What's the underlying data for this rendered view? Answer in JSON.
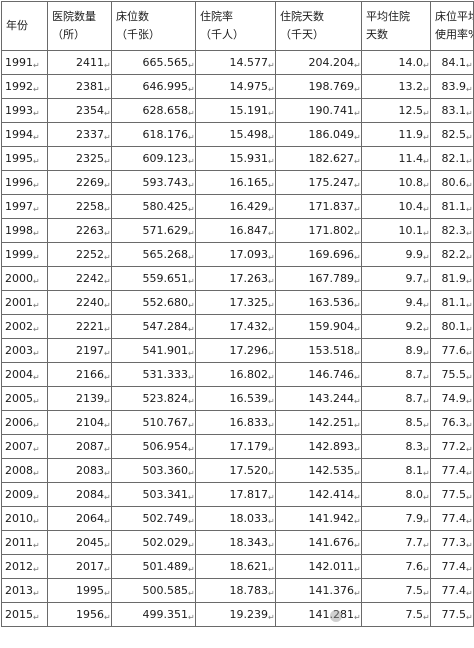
{
  "headers": [
    {
      "line1": "年份",
      "line2": ""
    },
    {
      "line1": "医院数量",
      "line2": "（所）"
    },
    {
      "line1": "床位数",
      "line2": "（千张）"
    },
    {
      "line1": "住院率",
      "line2": "（千人）"
    },
    {
      "line1": "住院天数",
      "line2": "（千天）"
    },
    {
      "line1": "平均住院",
      "line2": "天数"
    },
    {
      "line1": "床位平均",
      "line2": "使用率%"
    }
  ],
  "row_mark": "↵",
  "rows": [
    {
      "year": "1991",
      "hospitals": "2411",
      "beds": "665.565",
      "admission": "14.577",
      "days": "204.204",
      "avg_stay": "14.0",
      "occupancy": "84.1"
    },
    {
      "year": "1992",
      "hospitals": "2381",
      "beds": "646.995",
      "admission": "14.975",
      "days": "198.769",
      "avg_stay": "13.2",
      "occupancy": "83.9"
    },
    {
      "year": "1993",
      "hospitals": "2354",
      "beds": "628.658",
      "admission": "15.191",
      "days": "190.741",
      "avg_stay": "12.5",
      "occupancy": "83.1"
    },
    {
      "year": "1994",
      "hospitals": "2337",
      "beds": "618.176",
      "admission": "15.498",
      "days": "186.049",
      "avg_stay": "11.9",
      "occupancy": "82.5"
    },
    {
      "year": "1995",
      "hospitals": "2325",
      "beds": "609.123",
      "admission": "15.931",
      "days": "182.627",
      "avg_stay": "11.4",
      "occupancy": "82.1"
    },
    {
      "year": "1996",
      "hospitals": "2269",
      "beds": "593.743",
      "admission": "16.165",
      "days": "175.247",
      "avg_stay": "10.8",
      "occupancy": "80.6"
    },
    {
      "year": "1997",
      "hospitals": "2258",
      "beds": "580.425",
      "admission": "16.429",
      "days": "171.837",
      "avg_stay": "10.4",
      "occupancy": "81.1"
    },
    {
      "year": "1998",
      "hospitals": "2263",
      "beds": "571.629",
      "admission": "16.847",
      "days": "171.802",
      "avg_stay": "10.1",
      "occupancy": "82.3"
    },
    {
      "year": "1999",
      "hospitals": "2252",
      "beds": "565.268",
      "admission": "17.093",
      "days": "169.696",
      "avg_stay": "9.9",
      "occupancy": "82.2"
    },
    {
      "year": "2000",
      "hospitals": "2242",
      "beds": "559.651",
      "admission": "17.263",
      "days": "167.789",
      "avg_stay": "9.7",
      "occupancy": "81.9"
    },
    {
      "year": "2001",
      "hospitals": "2240",
      "beds": "552.680",
      "admission": "17.325",
      "days": "163.536",
      "avg_stay": "9.4",
      "occupancy": "81.1"
    },
    {
      "year": "2002",
      "hospitals": "2221",
      "beds": "547.284",
      "admission": "17.432",
      "days": "159.904",
      "avg_stay": "9.2",
      "occupancy": "80.1"
    },
    {
      "year": "2003",
      "hospitals": "2197",
      "beds": "541.901",
      "admission": "17.296",
      "days": "153.518",
      "avg_stay": "8.9",
      "occupancy": "77.6"
    },
    {
      "year": "2004",
      "hospitals": "2166",
      "beds": "531.333",
      "admission": "16.802",
      "days": "146.746",
      "avg_stay": "8.7",
      "occupancy": "75.5"
    },
    {
      "year": "2005",
      "hospitals": "2139",
      "beds": "523.824",
      "admission": "16.539",
      "days": "143.244",
      "avg_stay": "8.7",
      "occupancy": "74.9"
    },
    {
      "year": "2006",
      "hospitals": "2104",
      "beds": "510.767",
      "admission": "16.833",
      "days": "142.251",
      "avg_stay": "8.5",
      "occupancy": "76.3"
    },
    {
      "year": "2007",
      "hospitals": "2087",
      "beds": "506.954",
      "admission": "17.179",
      "days": "142.893",
      "avg_stay": "8.3",
      "occupancy": "77.2"
    },
    {
      "year": "2008",
      "hospitals": "2083",
      "beds": "503.360",
      "admission": "17.520",
      "days": "142.535",
      "avg_stay": "8.1",
      "occupancy": "77.4"
    },
    {
      "year": "2009",
      "hospitals": "2084",
      "beds": "503.341",
      "admission": "17.817",
      "days": "142.414",
      "avg_stay": "8.0",
      "occupancy": "77.5"
    },
    {
      "year": "2010",
      "hospitals": "2064",
      "beds": "502.749",
      "admission": "18.033",
      "days": "141.942",
      "avg_stay": "7.9",
      "occupancy": "77.4"
    },
    {
      "year": "2011",
      "hospitals": "2045",
      "beds": "502.029",
      "admission": "18.343",
      "days": "141.676",
      "avg_stay": "7.7",
      "occupancy": "77.3"
    },
    {
      "year": "2012",
      "hospitals": "2017",
      "beds": "501.489",
      "admission": "18.621",
      "days": "142.011",
      "avg_stay": "7.6",
      "occupancy": "77.4"
    },
    {
      "year": "2013",
      "hospitals": "1995",
      "beds": "500.585",
      "admission": "18.783",
      "days": "141.376",
      "avg_stay": "7.5",
      "occupancy": "77.4"
    },
    {
      "year": "2015",
      "hospitals": "1956",
      "beds": "499.351",
      "admission": "19.239",
      "days": "141.281",
      "avg_stay": "7.5",
      "occupancy": "77.5"
    }
  ]
}
